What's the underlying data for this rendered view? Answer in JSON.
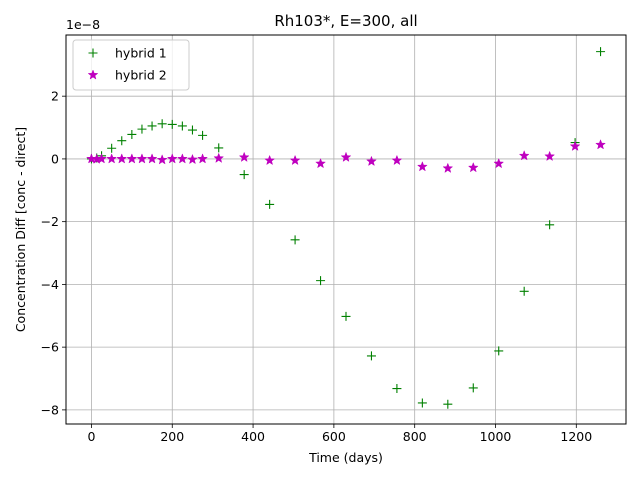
{
  "chart_data": {
    "type": "scatter",
    "title": "Rh103*, E=300, all",
    "xlabel": "Time (days)",
    "ylabel": "Concentration Diff [conc - direct]",
    "offset_label": "1e−8",
    "xlim": [
      -63,
      1323
    ],
    "ylim": [
      -8.45,
      3.95
    ],
    "x_ticks": [
      0,
      200,
      400,
      600,
      800,
      1000,
      1200
    ],
    "x_tick_labels": [
      "0",
      "200",
      "400",
      "600",
      "800",
      "1000",
      "1200"
    ],
    "y_ticks": [
      -8,
      -6,
      -4,
      -2,
      0,
      2
    ],
    "y_tick_labels": [
      "−8",
      "−6",
      "−4",
      "−2",
      "0",
      "2"
    ],
    "grid": true,
    "legend_position": "upper-left",
    "series": [
      {
        "name": "hybrid 1",
        "marker": "+",
        "color": "#008000",
        "points": [
          [
            0,
            0.0
          ],
          [
            13,
            0.03
          ],
          [
            25,
            0.1
          ],
          [
            50,
            0.34
          ],
          [
            75,
            0.58
          ],
          [
            100,
            0.78
          ],
          [
            125,
            0.95
          ],
          [
            150,
            1.05
          ],
          [
            175,
            1.12
          ],
          [
            200,
            1.1
          ],
          [
            225,
            1.05
          ],
          [
            250,
            0.92
          ],
          [
            275,
            0.75
          ],
          [
            315,
            0.35
          ],
          [
            378,
            -0.5
          ],
          [
            441,
            -1.45
          ],
          [
            504,
            -2.58
          ],
          [
            567,
            -3.88
          ],
          [
            630,
            -5.02
          ],
          [
            693,
            -6.28
          ],
          [
            756,
            -7.32
          ],
          [
            819,
            -7.78
          ],
          [
            882,
            -7.82
          ],
          [
            945,
            -7.3
          ],
          [
            1008,
            -6.12
          ],
          [
            1071,
            -4.22
          ],
          [
            1134,
            -2.1
          ],
          [
            1197,
            0.52
          ],
          [
            1260,
            3.42
          ]
        ]
      },
      {
        "name": "hybrid 2",
        "marker": "*",
        "color": "#bf00bf",
        "points": [
          [
            0,
            0.0
          ],
          [
            13,
            -0.01
          ],
          [
            25,
            0.0
          ],
          [
            50,
            0.0
          ],
          [
            75,
            0.0
          ],
          [
            100,
            0.0
          ],
          [
            125,
            0.0
          ],
          [
            150,
            0.0
          ],
          [
            175,
            -0.03
          ],
          [
            200,
            0.0
          ],
          [
            225,
            0.0
          ],
          [
            250,
            -0.02
          ],
          [
            275,
            0.0
          ],
          [
            315,
            0.02
          ],
          [
            378,
            0.05
          ],
          [
            441,
            -0.05
          ],
          [
            504,
            -0.05
          ],
          [
            567,
            -0.15
          ],
          [
            630,
            0.05
          ],
          [
            693,
            -0.08
          ],
          [
            756,
            -0.05
          ],
          [
            819,
            -0.25
          ],
          [
            882,
            -0.3
          ],
          [
            945,
            -0.28
          ],
          [
            1008,
            -0.15
          ],
          [
            1071,
            0.1
          ],
          [
            1134,
            0.08
          ],
          [
            1197,
            0.4
          ],
          [
            1260,
            0.45
          ]
        ]
      }
    ]
  }
}
